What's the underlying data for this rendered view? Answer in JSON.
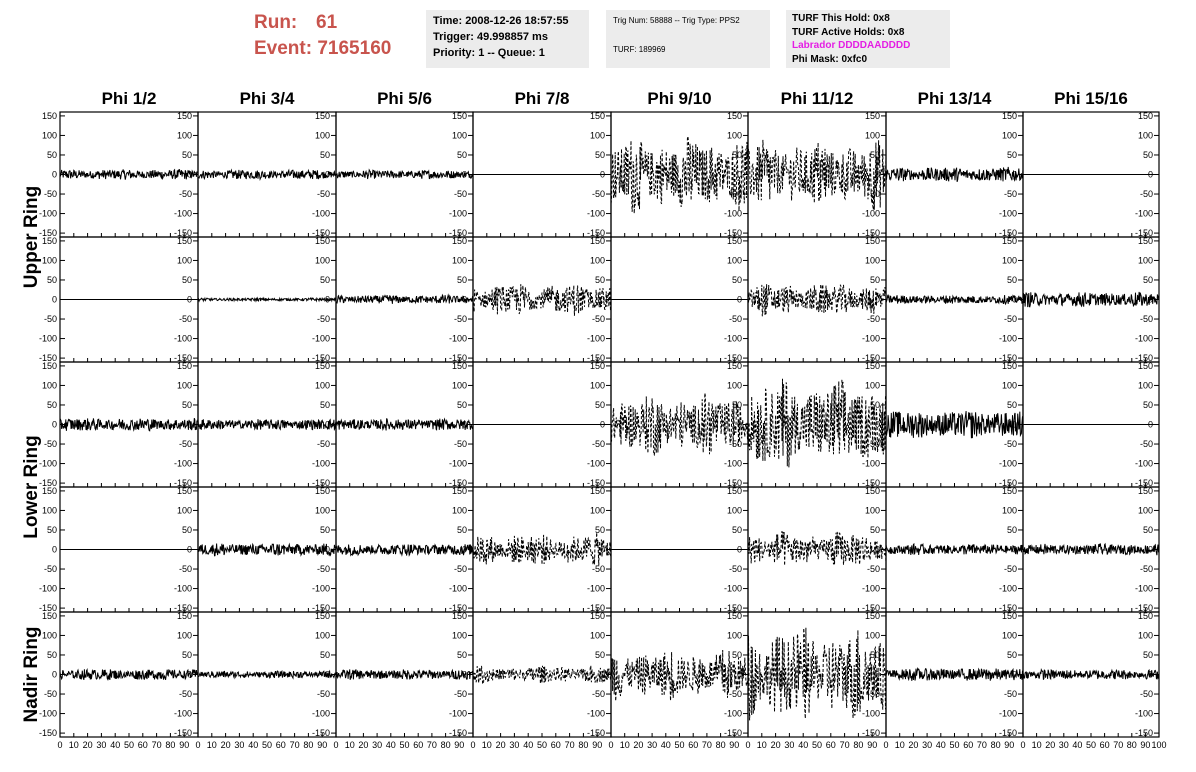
{
  "header": {
    "run_label": "Run:",
    "run_value": "61",
    "event_label": "Event:",
    "event_value": "7165160",
    "time_line": "Time: 2008-12-26 18:57:55",
    "trigger_line": "Trigger: 49.998857 ms",
    "priority_line": "Priority: 1 -- Queue: 1",
    "trig_line": "Trig Num: 58888 -- Trig Type: PPS2",
    "turf_line": "TURF: 189969",
    "turf_hold_line": "TURF This Hold: 0x8",
    "turf_active_line": "TURF Active Holds: 0x8",
    "labrador_line": "Labrador DDDDAADDDD",
    "phi_mask_line": "Phi Mask: 0xfc0",
    "colors": {
      "run_event": "#c8544d",
      "labrador": "#e41ee4",
      "info_bg": "#ececec"
    }
  },
  "chart_data": {
    "type": "line",
    "layout": "grid of waveform panels, 5 rows x 8 columns",
    "columns": [
      "Phi 1/2",
      "Phi 3/4",
      "Phi 5/6",
      "Phi 7/8",
      "Phi 9/10",
      "Phi 11/12",
      "Phi 13/14",
      "Phi 15/16"
    ],
    "rows": [
      "Upper Ring",
      "Upper Ring",
      "Lower Ring",
      "Lower Ring",
      "Nadir Ring"
    ],
    "row_labels": [
      {
        "text": "Upper Ring",
        "rows": [
          0,
          1
        ]
      },
      {
        "text": "Lower Ring",
        "rows": [
          2,
          3
        ]
      },
      {
        "text": "Nadir Ring",
        "rows": [
          4
        ]
      }
    ],
    "xlim": [
      0,
      100
    ],
    "ylim": [
      -160,
      160
    ],
    "x_ticks": [
      0,
      10,
      20,
      30,
      40,
      50,
      60,
      70,
      80,
      90,
      100
    ],
    "x_tick_labels_per_panel": [
      "0",
      "10",
      "20",
      "30",
      "40",
      "50",
      "60",
      "70",
      "80",
      "90",
      "100"
    ],
    "y_ticks": [
      -150,
      -100,
      -50,
      0,
      50,
      100,
      150
    ],
    "y_tick_labels": [
      "-150",
      "-100",
      "-50",
      "0",
      "50",
      "100",
      "150"
    ],
    "samples_per_trace": 260,
    "amplitude_note": "estimated peak amplitudes (data units) of each trace; style dashed = dashed line, flat = zero line",
    "amplitudes": [
      [
        14,
        13,
        12,
        0,
        105,
        95,
        20,
        0
      ],
      [
        0,
        4,
        12,
        45,
        0,
        45,
        12,
        20
      ],
      [
        18,
        15,
        16,
        0,
        85,
        125,
        38,
        0
      ],
      [
        0,
        18,
        16,
        45,
        0,
        50,
        15,
        15
      ],
      [
        15,
        10,
        14,
        25,
        70,
        130,
        18,
        14
      ]
    ],
    "styles": [
      [
        "solid",
        "solid",
        "solid",
        "flat",
        "dashed",
        "dashed",
        "solid",
        "flat"
      ],
      [
        "flat",
        "solid",
        "solid",
        "dashed",
        "flat",
        "dashed",
        "solid",
        "solid"
      ],
      [
        "solid",
        "solid",
        "solid",
        "flat",
        "dashed",
        "dashed",
        "solid",
        "flat"
      ],
      [
        "flat",
        "solid",
        "solid",
        "dashed",
        "flat",
        "dashed",
        "solid",
        "solid"
      ],
      [
        "solid",
        "solid",
        "solid",
        "dashed",
        "dashed",
        "dashed",
        "solid",
        "solid"
      ]
    ],
    "grid": false,
    "legend": "none"
  }
}
